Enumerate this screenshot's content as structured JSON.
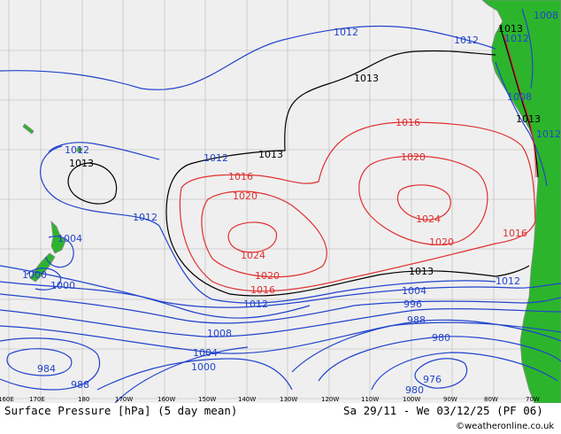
{
  "map": {
    "colors": {
      "ocean": "#efefef",
      "land": "#2cb52c",
      "grid": "#b4b4b4",
      "isobar_low": "#2244cc",
      "isobar_mid": "#000000",
      "isobar_high": "#e03030",
      "coast": "#888888"
    },
    "longitude_ticks": [
      "160E",
      "170E",
      "180",
      "170W",
      "160W",
      "150W",
      "140W",
      "130W",
      "120W",
      "110W",
      "100W",
      "90W",
      "80W",
      "70W"
    ],
    "isobar_labels": [
      {
        "text": "1012",
        "kind": "low"
      },
      {
        "text": "1012",
        "kind": "low"
      },
      {
        "text": "1013",
        "kind": "mid"
      },
      {
        "text": "1012",
        "kind": "low"
      },
      {
        "text": "1008",
        "kind": "low"
      },
      {
        "text": "1013",
        "kind": "mid"
      },
      {
        "text": "1008",
        "kind": "low"
      },
      {
        "text": "1013",
        "kind": "mid"
      },
      {
        "text": "1016",
        "kind": "high"
      },
      {
        "text": "1012",
        "kind": "low"
      },
      {
        "text": "1012",
        "kind": "low"
      },
      {
        "text": "1013",
        "kind": "mid"
      },
      {
        "text": "1012",
        "kind": "low"
      },
      {
        "text": "1013",
        "kind": "mid"
      },
      {
        "text": "1020",
        "kind": "high"
      },
      {
        "text": "1016",
        "kind": "high"
      },
      {
        "text": "1020",
        "kind": "high"
      },
      {
        "text": "1012",
        "kind": "low"
      },
      {
        "text": "1024",
        "kind": "high"
      },
      {
        "text": "1004",
        "kind": "low"
      },
      {
        "text": "1024",
        "kind": "high"
      },
      {
        "text": "1020",
        "kind": "high"
      },
      {
        "text": "1016",
        "kind": "high"
      },
      {
        "text": "1000",
        "kind": "low"
      },
      {
        "text": "1000",
        "kind": "low"
      },
      {
        "text": "1020",
        "kind": "high"
      },
      {
        "text": "1013",
        "kind": "mid"
      },
      {
        "text": "1012",
        "kind": "low"
      },
      {
        "text": "1016",
        "kind": "high"
      },
      {
        "text": "1004",
        "kind": "low"
      },
      {
        "text": "1012",
        "kind": "low"
      },
      {
        "text": "996",
        "kind": "low"
      },
      {
        "text": "988",
        "kind": "low"
      },
      {
        "text": "1008",
        "kind": "low"
      },
      {
        "text": "980",
        "kind": "low"
      },
      {
        "text": "1004",
        "kind": "low"
      },
      {
        "text": "1000",
        "kind": "low"
      },
      {
        "text": "984",
        "kind": "low"
      },
      {
        "text": "976",
        "kind": "low"
      },
      {
        "text": "988",
        "kind": "low"
      },
      {
        "text": "980",
        "kind": "low"
      }
    ]
  },
  "footer": {
    "title": "Surface Pressure [hPa] (5 day mean)",
    "period": "Sa 29/11 - We 03/12/25 (PF 06)",
    "credit": "©weatheronline.co.uk"
  }
}
